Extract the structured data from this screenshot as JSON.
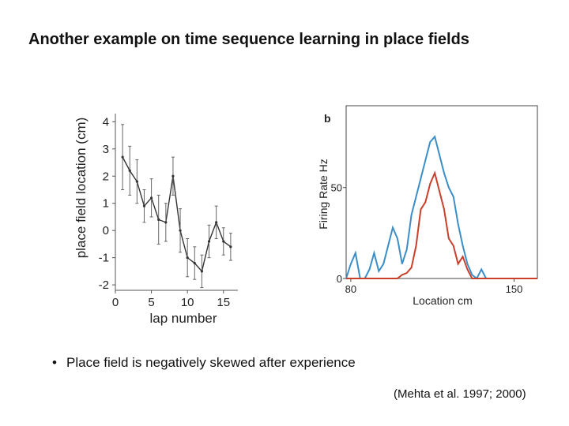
{
  "slide": {
    "title": "Another example on time sequence learning in place fields",
    "bullet": "Place field is negatively skewed after experience",
    "bullet_marker": "•",
    "citation": "(Mehta et al. 1997; 2000)"
  },
  "chart_data": [
    {
      "type": "line",
      "panel": "left",
      "xlabel": "lap number",
      "ylabel": "place field location (cm)",
      "xticks": [
        "0",
        "5",
        "10",
        "15"
      ],
      "yticks": [
        "4",
        "3",
        "2",
        "1",
        "0",
        "-1",
        "-2"
      ],
      "xlim": [
        0,
        17
      ],
      "ylim": [
        -2.2,
        4.3
      ],
      "color": "#333333",
      "series": [
        {
          "x": [
            1,
            2,
            3,
            4,
            5,
            6,
            7,
            8,
            9,
            10,
            11,
            12,
            13,
            14,
            15,
            16
          ],
          "y": [
            2.7,
            2.2,
            1.8,
            0.9,
            1.2,
            0.4,
            0.3,
            2.0,
            0.0,
            -1.0,
            -1.2,
            -1.5,
            -0.4,
            0.3,
            -0.4,
            -0.6
          ],
          "err": [
            1.2,
            0.9,
            0.8,
            0.6,
            0.7,
            0.9,
            0.7,
            0.7,
            0.8,
            0.7,
            0.6,
            0.6,
            0.6,
            0.6,
            0.5,
            0.5
          ]
        }
      ]
    },
    {
      "type": "line",
      "panel": "right",
      "panel_label": "b",
      "xlabel": "Location cm",
      "ylabel": "Firing Rate Hz",
      "xticks": [
        "80",
        "150"
      ],
      "yticks": [
        "0",
        "50"
      ],
      "xlim": [
        78,
        160
      ],
      "ylim": [
        0,
        95
      ],
      "series": [
        {
          "color": "#3a8fc9",
          "x": [
            78,
            80,
            82,
            84,
            86,
            88,
            90,
            92,
            94,
            96,
            98,
            100,
            102,
            104,
            106,
            108,
            110,
            112,
            114,
            116,
            118,
            120,
            122,
            124,
            126,
            128,
            130,
            132,
            134,
            136,
            138,
            140,
            142,
            144,
            146,
            148,
            150,
            152,
            154,
            156,
            158,
            160
          ],
          "y": [
            0,
            8,
            14,
            0,
            0,
            5,
            14,
            4,
            8,
            18,
            28,
            22,
            8,
            16,
            35,
            45,
            55,
            65,
            75,
            78,
            68,
            58,
            50,
            45,
            30,
            18,
            8,
            2,
            0,
            5,
            0,
            0,
            0,
            0,
            0,
            0,
            0,
            0,
            0,
            0,
            0,
            0
          ]
        },
        {
          "color": "#c8402a",
          "x": [
            78,
            80,
            82,
            84,
            86,
            88,
            90,
            92,
            94,
            96,
            98,
            100,
            102,
            104,
            106,
            108,
            110,
            112,
            114,
            116,
            118,
            120,
            122,
            124,
            126,
            128,
            130,
            132,
            134,
            136,
            138,
            140,
            142,
            144,
            146,
            148,
            150,
            152,
            154,
            156,
            158,
            160
          ],
          "y": [
            0,
            0,
            0,
            0,
            0,
            0,
            0,
            0,
            0,
            0,
            0,
            0,
            2,
            3,
            6,
            18,
            38,
            42,
            52,
            58,
            48,
            38,
            22,
            18,
            8,
            12,
            5,
            0,
            0,
            0,
            0,
            0,
            0,
            0,
            0,
            0,
            0,
            0,
            0,
            0,
            0,
            0
          ]
        }
      ]
    }
  ]
}
